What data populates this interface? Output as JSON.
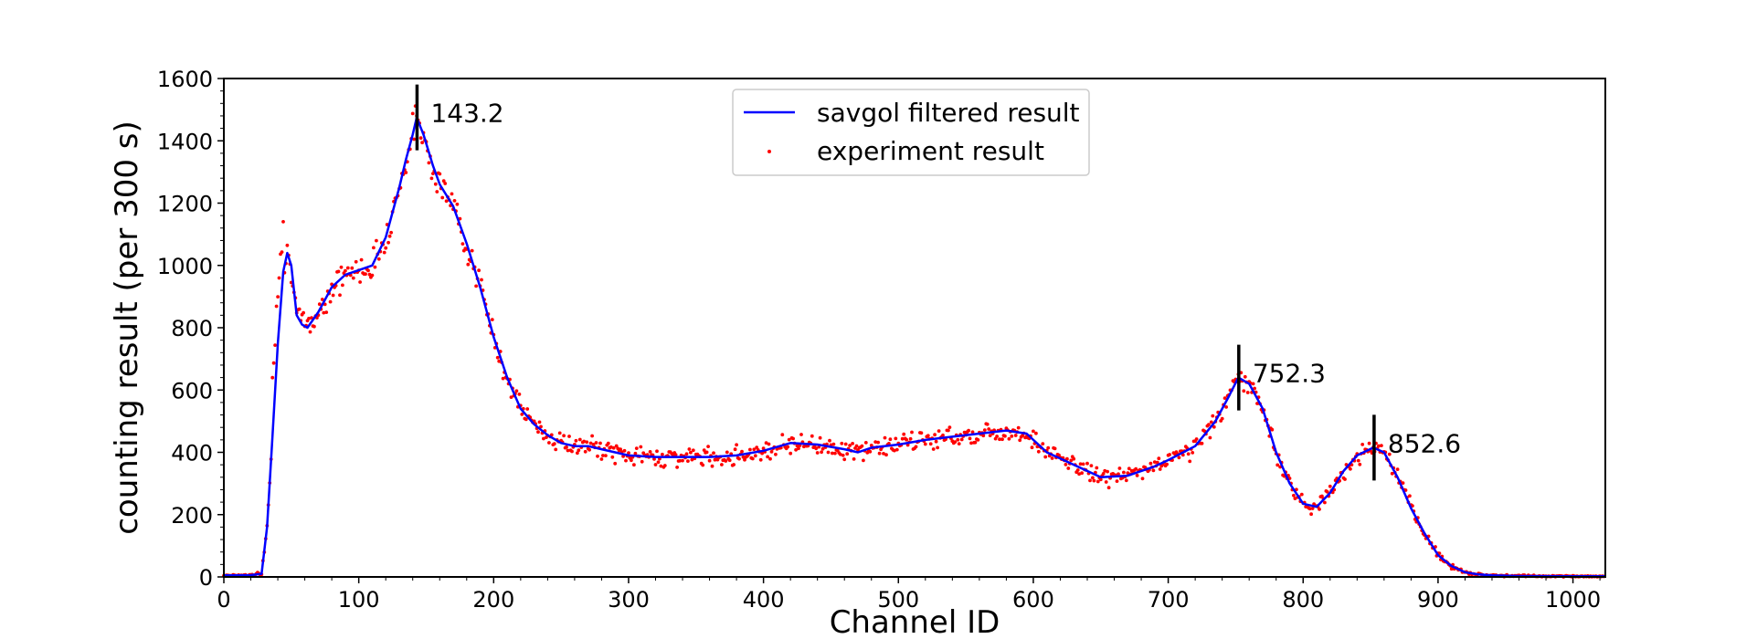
{
  "chart_data": {
    "type": "line",
    "title": "",
    "xlabel": "Channel ID",
    "ylabel": "counting result (per 300 s)",
    "xlim": [
      0,
      1024
    ],
    "ylim": [
      0,
      1600
    ],
    "x_ticks": [
      0,
      100,
      200,
      300,
      400,
      500,
      600,
      700,
      800,
      900,
      1000
    ],
    "y_ticks": [
      0,
      200,
      400,
      600,
      800,
      1000,
      1200,
      1400,
      1600
    ],
    "grid": false,
    "legend_position": "top-center",
    "series": [
      {
        "name": "savgol filtered result",
        "style": "line",
        "color": "#0000ff",
        "x": [
          0,
          20,
          28,
          32,
          36,
          40,
          44,
          47,
          50,
          54,
          58,
          62,
          70,
          80,
          90,
          100,
          110,
          120,
          130,
          135,
          140,
          143,
          148,
          155,
          160,
          170,
          180,
          190,
          200,
          210,
          220,
          230,
          240,
          250,
          260,
          270,
          280,
          300,
          320,
          340,
          360,
          380,
          400,
          420,
          440,
          460,
          470,
          480,
          500,
          520,
          540,
          560,
          580,
          595,
          610,
          630,
          650,
          670,
          690,
          700,
          720,
          735,
          745,
          752,
          760,
          770,
          780,
          790,
          800,
          810,
          820,
          830,
          840,
          852,
          860,
          870,
          880,
          890,
          900,
          910,
          920,
          930,
          940,
          960,
          1000,
          1024
        ],
        "y": [
          5,
          6,
          10,
          160,
          450,
          750,
          980,
          1040,
          1000,
          840,
          810,
          800,
          850,
          930,
          970,
          985,
          1000,
          1090,
          1250,
          1340,
          1420,
          1475,
          1420,
          1320,
          1260,
          1190,
          1070,
          930,
          770,
          640,
          540,
          490,
          455,
          430,
          420,
          420,
          410,
          390,
          385,
          385,
          385,
          390,
          405,
          430,
          425,
          410,
          400,
          415,
          425,
          440,
          450,
          460,
          470,
          460,
          400,
          360,
          320,
          325,
          355,
          375,
          420,
          500,
          580,
          640,
          620,
          540,
          400,
          300,
          235,
          225,
          270,
          340,
          390,
          415,
          400,
          320,
          220,
          140,
          70,
          35,
          15,
          8,
          5,
          3,
          2,
          2
        ]
      },
      {
        "name": "experiment result",
        "style": "scatter",
        "color": "#ff0000"
      }
    ],
    "annotations": [
      {
        "x": 143.2,
        "y_center": 1475,
        "label": "143.2"
      },
      {
        "x": 752.3,
        "y_center": 640,
        "label": "752.3"
      },
      {
        "x": 852.6,
        "y_center": 415,
        "label": "852.6"
      }
    ]
  }
}
